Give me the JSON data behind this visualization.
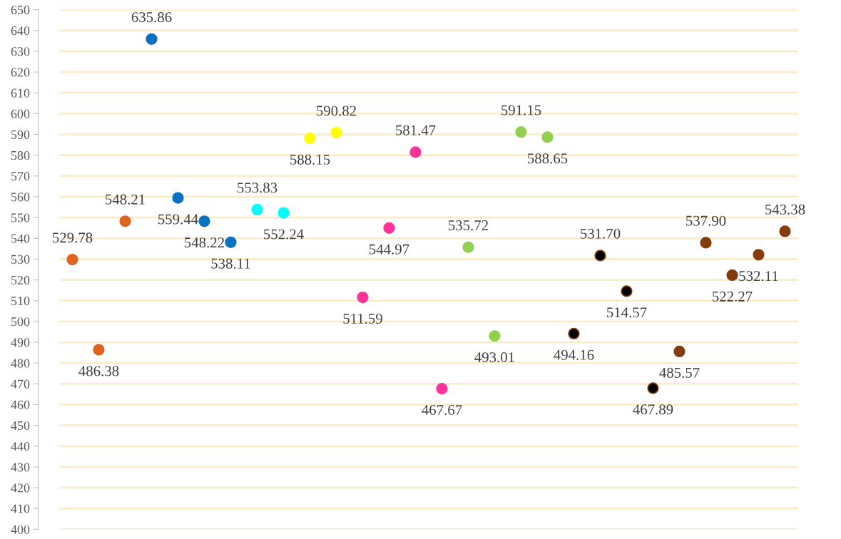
{
  "chart_data": {
    "type": "scatter",
    "categories": [
      null,
      null,
      null,
      null,
      null,
      null,
      null,
      null,
      null,
      null,
      null,
      null,
      null,
      null,
      null,
      null,
      null,
      null,
      null,
      null,
      null,
      null,
      null,
      null,
      null,
      null,
      null,
      null
    ],
    "series": [
      {
        "color": "#e0631f",
        "values": [
          529.78,
          486.38,
          548.21,
          null,
          null,
          null,
          null,
          null,
          null,
          null,
          null,
          null,
          null,
          null,
          null,
          null,
          null,
          null,
          null,
          null,
          null,
          null,
          null,
          null,
          null,
          null,
          null,
          null
        ],
        "value_labels": [
          "529.78",
          "486.38",
          "548.21",
          null,
          null,
          null,
          null,
          null,
          null,
          null,
          null,
          null,
          null,
          null,
          null,
          null,
          null,
          null,
          null,
          null,
          null,
          null,
          null,
          null,
          null,
          null,
          null,
          null
        ]
      },
      {
        "color": "#0a70c0",
        "values": [
          null,
          null,
          null,
          635.86,
          559.44,
          548.22,
          538.11,
          null,
          null,
          null,
          null,
          null,
          null,
          null,
          null,
          null,
          null,
          null,
          null,
          null,
          null,
          null,
          null,
          null,
          null,
          null,
          null,
          null
        ],
        "value_labels": [
          null,
          null,
          null,
          "635.86",
          "559.44",
          "548.22",
          "538.11",
          null,
          null,
          null,
          null,
          null,
          null,
          null,
          null,
          null,
          null,
          null,
          null,
          null,
          null,
          null,
          null,
          null,
          null,
          null,
          null,
          null
        ]
      },
      {
        "color": "#00ffff",
        "values": [
          null,
          null,
          null,
          null,
          null,
          null,
          null,
          553.83,
          552.24,
          null,
          null,
          null,
          null,
          null,
          null,
          null,
          null,
          null,
          null,
          null,
          null,
          null,
          null,
          null,
          null,
          null,
          null,
          null
        ],
        "value_labels": [
          null,
          null,
          null,
          null,
          null,
          null,
          null,
          "553.83",
          "552.24",
          null,
          null,
          null,
          null,
          null,
          null,
          null,
          null,
          null,
          null,
          null,
          null,
          null,
          null,
          null,
          null,
          null,
          null,
          null
        ]
      },
      {
        "color": "#ffff00",
        "values": [
          null,
          null,
          null,
          null,
          null,
          null,
          null,
          null,
          null,
          588.15,
          590.82,
          null,
          null,
          null,
          null,
          null,
          null,
          null,
          null,
          null,
          null,
          null,
          null,
          null,
          null,
          null,
          null,
          null
        ],
        "value_labels": [
          null,
          null,
          null,
          null,
          null,
          null,
          null,
          null,
          null,
          "588.15",
          "590.82",
          null,
          null,
          null,
          null,
          null,
          null,
          null,
          null,
          null,
          null,
          null,
          null,
          null,
          null,
          null,
          null,
          null
        ]
      },
      {
        "color": "#ff3399",
        "values": [
          null,
          null,
          null,
          null,
          null,
          null,
          null,
          null,
          null,
          null,
          null,
          511.59,
          544.97,
          581.47,
          467.67,
          null,
          null,
          null,
          null,
          null,
          null,
          null,
          null,
          null,
          null,
          null,
          null,
          null
        ],
        "value_labels": [
          null,
          null,
          null,
          null,
          null,
          null,
          null,
          null,
          null,
          null,
          null,
          "511.59",
          "544.97",
          "581.47",
          "467.67",
          null,
          null,
          null,
          null,
          null,
          null,
          null,
          null,
          null,
          null,
          null,
          null,
          null
        ]
      },
      {
        "color": "#92d050",
        "values": [
          null,
          null,
          null,
          null,
          null,
          null,
          null,
          null,
          null,
          null,
          null,
          null,
          null,
          null,
          null,
          535.72,
          493.01,
          591.15,
          588.65,
          null,
          null,
          null,
          null,
          null,
          null,
          null,
          null,
          null
        ],
        "value_labels": [
          null,
          null,
          null,
          null,
          null,
          null,
          null,
          null,
          null,
          null,
          null,
          null,
          null,
          null,
          null,
          "535.72",
          "493.01",
          "591.15",
          "588.65",
          null,
          null,
          null,
          null,
          null,
          null,
          null,
          null,
          null
        ]
      },
      {
        "color": "#000000",
        "values": [
          null,
          null,
          null,
          null,
          null,
          null,
          null,
          null,
          null,
          null,
          null,
          null,
          null,
          null,
          null,
          null,
          null,
          null,
          null,
          494.16,
          531.7,
          514.57,
          467.89,
          null,
          null,
          null,
          null,
          null
        ],
        "value_labels": [
          null,
          null,
          null,
          null,
          null,
          null,
          null,
          null,
          null,
          null,
          null,
          null,
          null,
          null,
          null,
          null,
          null,
          null,
          null,
          "494.16",
          "531.70",
          "514.57",
          "467.89",
          null,
          null,
          null,
          null,
          null
        ]
      },
      {
        "color": "#843c0c",
        "values": [
          null,
          null,
          null,
          null,
          null,
          null,
          null,
          null,
          null,
          null,
          null,
          null,
          null,
          null,
          null,
          null,
          null,
          null,
          null,
          null,
          null,
          null,
          null,
          485.57,
          537.9,
          522.27,
          532.11,
          543.38
        ],
        "value_labels": [
          null,
          null,
          null,
          null,
          null,
          null,
          null,
          null,
          null,
          null,
          null,
          null,
          null,
          null,
          null,
          null,
          null,
          null,
          null,
          null,
          null,
          null,
          null,
          "485.57",
          "537.90",
          "522.27",
          "532.11",
          "543.38"
        ]
      }
    ],
    "ylim": [
      400,
      650
    ],
    "yticks": [
      400,
      410,
      420,
      430,
      440,
      450,
      460,
      470,
      480,
      490,
      500,
      510,
      520,
      530,
      540,
      550,
      560,
      570,
      580,
      590,
      600,
      610,
      620,
      630,
      640,
      650
    ],
    "grid": "y",
    "marker": "circle",
    "legend": false
  }
}
